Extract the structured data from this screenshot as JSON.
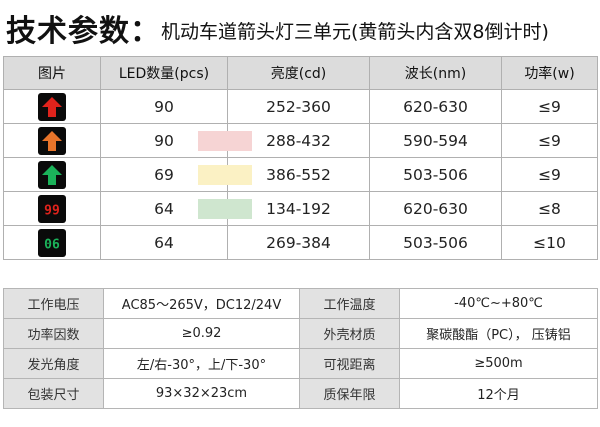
{
  "title": {
    "main": "技术参数：",
    "sub": "机动车道箭头灯三单元(黄箭头内含双8倒计时)"
  },
  "spec": {
    "headers": [
      "图片",
      "LED数量(pcs)",
      "亮度(cd)",
      "波长(nm)",
      "功率(w)"
    ],
    "rows": [
      {
        "icon": "red-arrow-up-icon",
        "led": "90",
        "brightness": "252-360",
        "wavelength": "620-630",
        "power": "≤9",
        "swatch": ""
      },
      {
        "icon": "yellow-arrow-up-icon",
        "led": "90",
        "brightness": "288-432",
        "wavelength": "590-594",
        "power": "≤9",
        "swatch": "#f6d4d4"
      },
      {
        "icon": "green-arrow-up-icon",
        "led": "69",
        "brightness": "386-552",
        "wavelength": "503-506",
        "power": "≤9",
        "swatch": "#fbf1c4"
      },
      {
        "icon": "red-countdown-99-icon",
        "led": "64",
        "brightness": "134-192",
        "wavelength": "620-630",
        "power": "≤8",
        "swatch": "#cfe6cf"
      },
      {
        "icon": "green-countdown-06-icon",
        "led": "64",
        "brightness": "269-384",
        "wavelength": "503-506",
        "power": "≤10",
        "swatch": ""
      }
    ],
    "icon_digits": {
      "red": "99",
      "green": "06"
    },
    "colors": {
      "red": "#e0231c",
      "amber": "#e8742a",
      "green": "#1bb35a",
      "lamp_bg": "#0a0a0a"
    }
  },
  "electrical": {
    "rows": [
      {
        "label1": "工作电压",
        "value1": "AC85～265V，DC12/24V",
        "label2": "工作温度",
        "value2": "-40℃~+80℃"
      },
      {
        "label1": "功率因数",
        "value1": "≥0.92",
        "label2": "外壳材质",
        "value2": "聚碳酸酯（PC）， 压铸铝"
      },
      {
        "label1": "发光角度",
        "value1": "左/右-30°，上/下-30°",
        "label2": "可视距离",
        "value2": "≥500m"
      },
      {
        "label1": "包装尺寸",
        "value1": "93×32×23cm",
        "label2": "质保年限",
        "value2": "12个月"
      }
    ]
  }
}
